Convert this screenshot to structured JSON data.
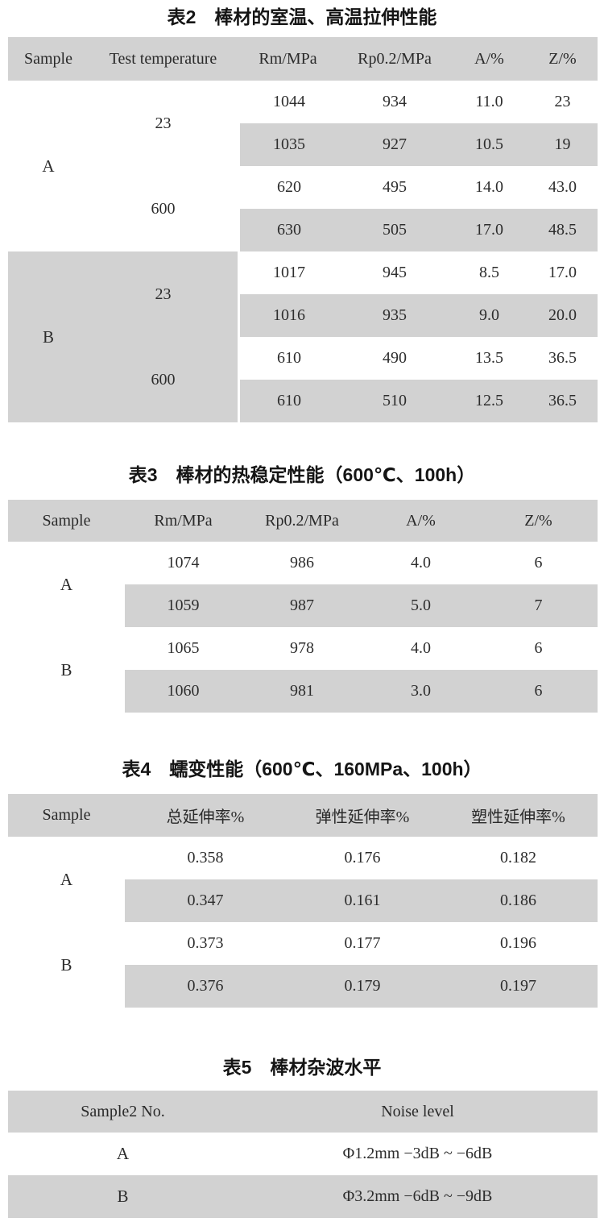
{
  "colors": {
    "row_shade": "#d2d2d2",
    "background": "#ffffff"
  },
  "table2": {
    "title": "表2　棒材的室温、高温拉伸性能",
    "headers": [
      "Sample",
      "Test temperature",
      "Rm/MPa",
      "Rp0.2/MPa",
      "A/%",
      "Z/%"
    ],
    "groups": [
      {
        "sample": "A",
        "temps": [
          "23",
          "600"
        ]
      },
      {
        "sample": "B",
        "temps": [
          "23",
          "600"
        ]
      }
    ],
    "rows": [
      [
        "1044",
        "934",
        "11.0",
        "23"
      ],
      [
        "1035",
        "927",
        "10.5",
        "19"
      ],
      [
        "620",
        "495",
        "14.0",
        "43.0"
      ],
      [
        "630",
        "505",
        "17.0",
        "48.5"
      ],
      [
        "1017",
        "945",
        "8.5",
        "17.0"
      ],
      [
        "1016",
        "935",
        "9.0",
        "20.0"
      ],
      [
        "610",
        "490",
        "13.5",
        "36.5"
      ],
      [
        "610",
        "510",
        "12.5",
        "36.5"
      ]
    ]
  },
  "table3": {
    "title": "表3　棒材的热稳定性能（600℃、100h）",
    "headers": [
      "Sample",
      "Rm/MPa",
      "Rp0.2/MPa",
      "A/%",
      "Z/%"
    ],
    "samples": [
      "A",
      "B"
    ],
    "rows": [
      [
        "1074",
        "986",
        "4.0",
        "6"
      ],
      [
        "1059",
        "987",
        "5.0",
        "7"
      ],
      [
        "1065",
        "978",
        "4.0",
        "6"
      ],
      [
        "1060",
        "981",
        "3.0",
        "6"
      ]
    ]
  },
  "table4": {
    "title": "表4　蠕变性能（600℃、160MPa、100h）",
    "headers": [
      "Sample",
      "总延伸率%",
      "弹性延伸率%",
      "塑性延伸率%"
    ],
    "samples": [
      "A",
      "B"
    ],
    "rows": [
      [
        "0.358",
        "0.176",
        "0.182"
      ],
      [
        "0.347",
        "0.161",
        "0.186"
      ],
      [
        "0.373",
        "0.177",
        "0.196"
      ],
      [
        "0.376",
        "0.179",
        "0.197"
      ]
    ]
  },
  "table5": {
    "title": "表5　棒材杂波水平",
    "headers": [
      "Sample2 No.",
      "Noise level"
    ],
    "rows": [
      [
        "A",
        "Φ1.2mm −3dB ~ −6dB"
      ],
      [
        "B",
        "Φ3.2mm −6dB ~ −9dB"
      ]
    ]
  }
}
